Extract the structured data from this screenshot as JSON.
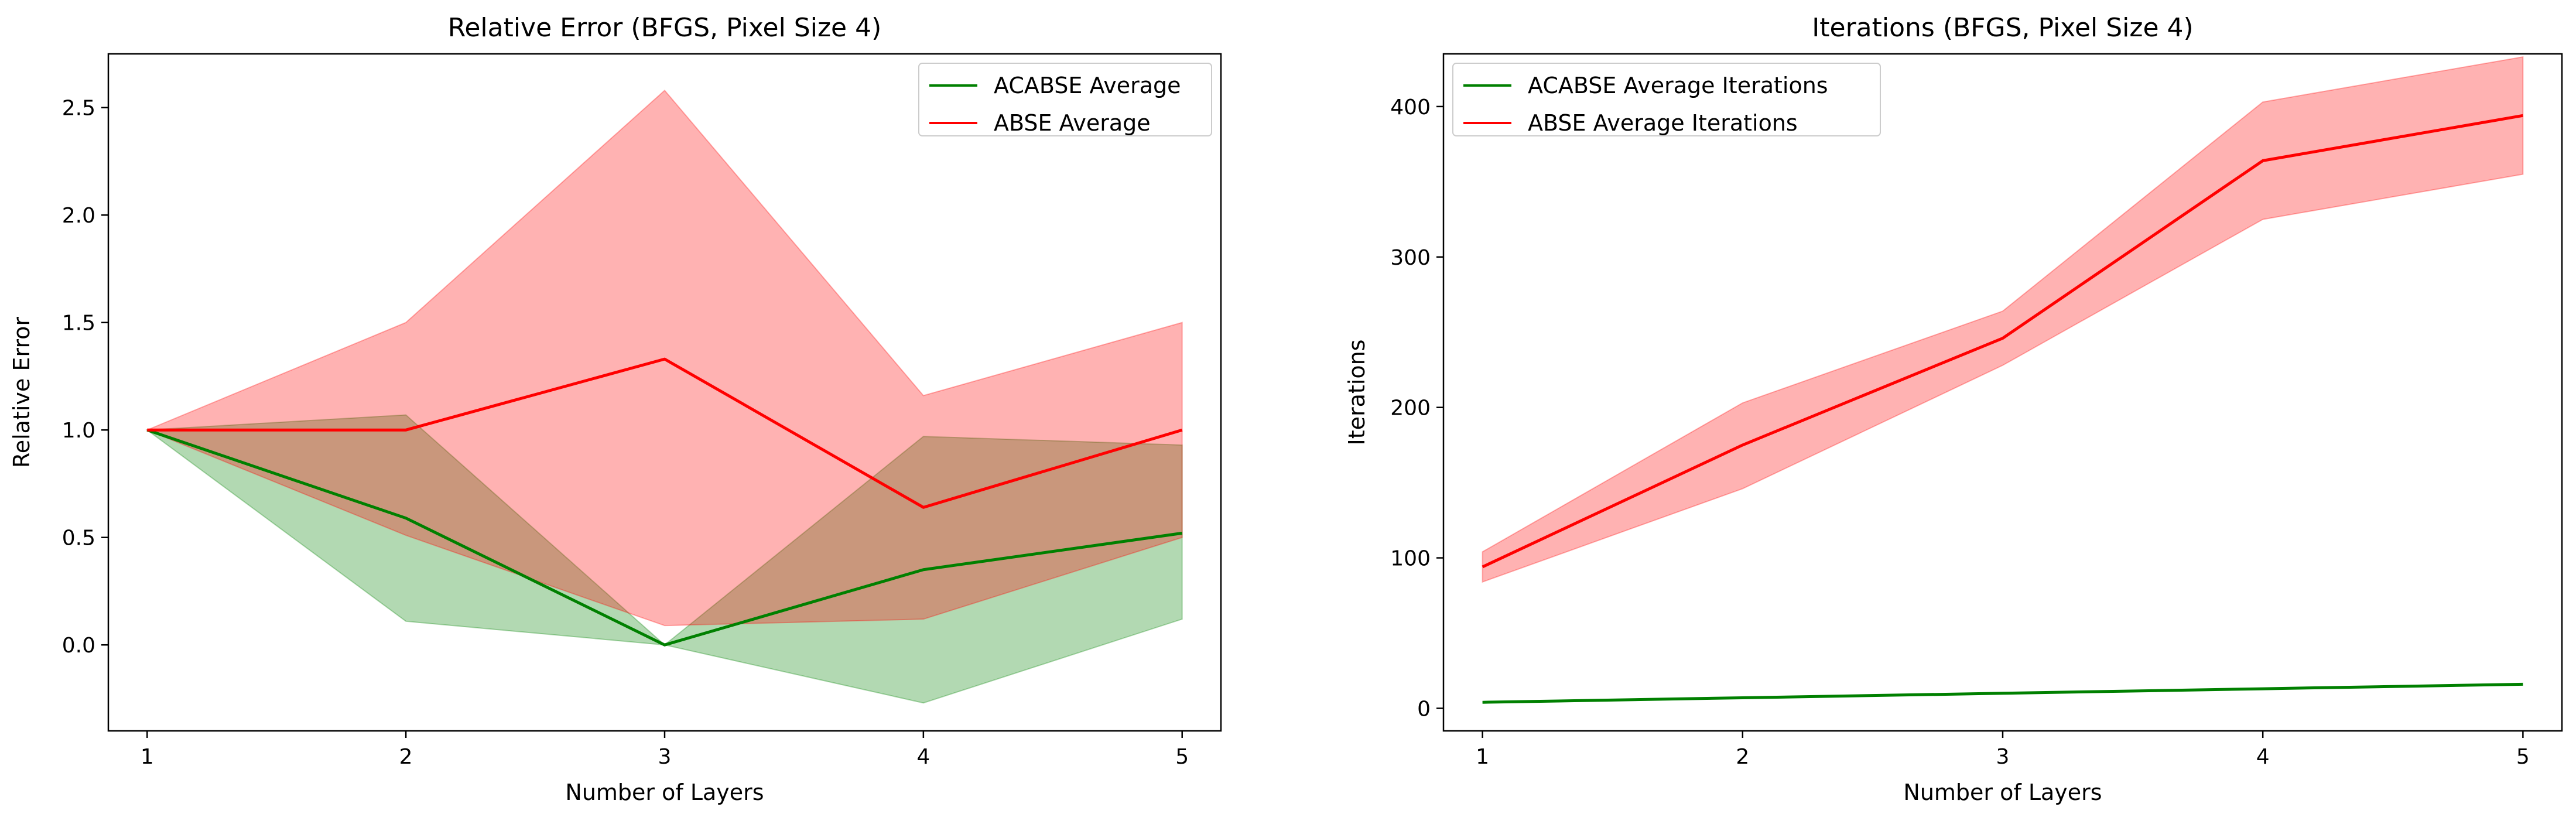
{
  "chart_data": [
    {
      "type": "line",
      "title": "Relative Error (BFGS, Pixel Size 4)",
      "xlabel": "Number of Layers",
      "ylabel": "Relative Error",
      "xlim": [
        0.85,
        5.15
      ],
      "ylim": [
        -0.4,
        2.75
      ],
      "xticks": [
        1,
        2,
        3,
        4,
        5
      ],
      "yticks": [
        0.0,
        0.5,
        1.0,
        1.5,
        2.0,
        2.5
      ],
      "ytick_labels": [
        "0.0",
        "0.5",
        "1.0",
        "1.5",
        "2.0",
        "2.5"
      ],
      "legend_position": "upper right",
      "x": [
        1,
        2,
        3,
        4,
        5
      ],
      "series": [
        {
          "name": "ACABSE Average",
          "color": "#008000",
          "band_color": "#008000",
          "values": [
            1.0,
            0.59,
            0.0,
            0.35,
            0.52
          ],
          "lower": [
            1.0,
            0.11,
            0.0,
            -0.27,
            0.12
          ],
          "upper": [
            1.0,
            1.07,
            0.0,
            0.97,
            0.93
          ]
        },
        {
          "name": "ABSE Average",
          "color": "#ff0000",
          "band_color": "#ff0000",
          "values": [
            1.0,
            1.0,
            1.33,
            0.64,
            1.0
          ],
          "lower": [
            1.0,
            0.51,
            0.09,
            0.12,
            0.5
          ],
          "upper": [
            1.0,
            1.5,
            2.58,
            1.16,
            1.5
          ]
        }
      ]
    },
    {
      "type": "line",
      "title": "Iterations (BFGS, Pixel Size 4)",
      "xlabel": "Number of Layers",
      "ylabel": "Iterations",
      "xlim": [
        0.85,
        5.15
      ],
      "ylim": [
        -15,
        435
      ],
      "xticks": [
        1,
        2,
        3,
        4,
        5
      ],
      "yticks": [
        0,
        100,
        200,
        300,
        400
      ],
      "ytick_labels": [
        "0",
        "100",
        "200",
        "300",
        "400"
      ],
      "legend_position": "upper left",
      "x": [
        1,
        2,
        3,
        4,
        5
      ],
      "series": [
        {
          "name": "ACABSE Average Iterations",
          "color": "#008000",
          "band_color": "#008000",
          "values": [
            4,
            7,
            10,
            13,
            16
          ],
          "lower": [
            4,
            7,
            10,
            13,
            16
          ],
          "upper": [
            4,
            7,
            10,
            13,
            16
          ]
        },
        {
          "name": "ABSE Average Iterations",
          "color": "#ff0000",
          "band_color": "#ff0000",
          "values": [
            94,
            175,
            246,
            364,
            394
          ],
          "lower": [
            84,
            146,
            228,
            325,
            355
          ],
          "upper": [
            104,
            203,
            264,
            403,
            433
          ]
        }
      ]
    }
  ]
}
